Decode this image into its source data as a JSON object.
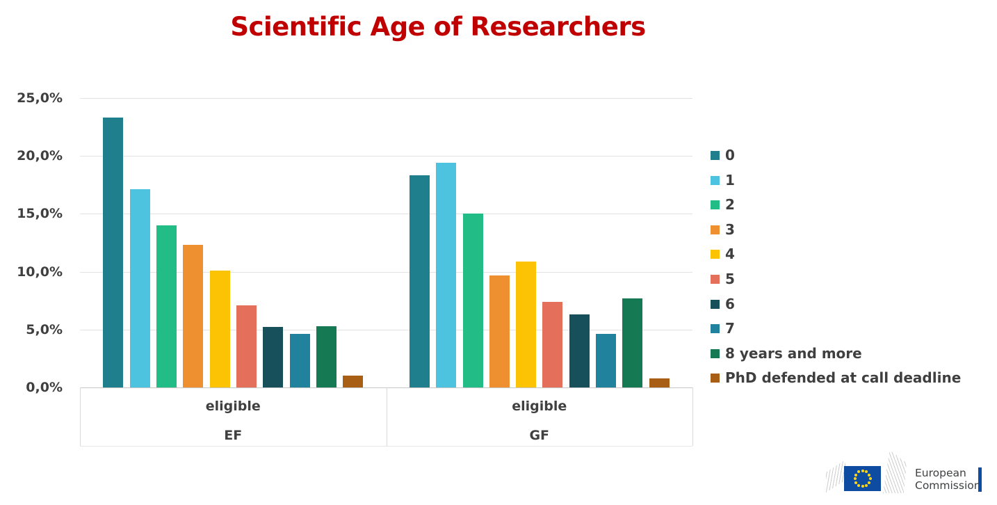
{
  "title": {
    "text": "Scientific Age of Researchers",
    "color": "#C00000"
  },
  "chart_data": {
    "type": "bar",
    "title": "Scientific Age of Researchers",
    "xlabel": "",
    "ylabel": "",
    "ylim": [
      0,
      25
    ],
    "grid": true,
    "legend_position": "right",
    "yticks": [
      {
        "value": 0,
        "label": "0,0%"
      },
      {
        "value": 5,
        "label": "5,0%"
      },
      {
        "value": 10,
        "label": "10,0%"
      },
      {
        "value": 15,
        "label": "15,0%"
      },
      {
        "value": 20,
        "label": "20,0%"
      },
      {
        "value": 25,
        "label": "25,0%"
      }
    ],
    "categories": [
      {
        "top": "eligible",
        "bottom": "EF"
      },
      {
        "top": "eligible",
        "bottom": "GF"
      }
    ],
    "series": [
      {
        "name": "0",
        "color": "#1F7F8C",
        "values": [
          23.3,
          18.3
        ]
      },
      {
        "name": "1",
        "color": "#4EC3E0",
        "values": [
          17.1,
          19.4
        ]
      },
      {
        "name": "2",
        "color": "#22BD86",
        "values": [
          14.0,
          15.0
        ]
      },
      {
        "name": "3",
        "color": "#EE8F30",
        "values": [
          12.3,
          9.7
        ]
      },
      {
        "name": "4",
        "color": "#FBC304",
        "values": [
          10.1,
          10.9
        ]
      },
      {
        "name": "5",
        "color": "#E4705C",
        "values": [
          7.1,
          7.4
        ]
      },
      {
        "name": "6",
        "color": "#17505B",
        "values": [
          5.2,
          6.3
        ]
      },
      {
        "name": "7",
        "color": "#20829C",
        "values": [
          4.6,
          4.6
        ]
      },
      {
        "name": "8 years and more",
        "color": "#157A54",
        "values": [
          5.3,
          7.7
        ]
      },
      {
        "name": "PhD defended at call deadline",
        "color": "#A85E14",
        "values": [
          1.0,
          0.8
        ]
      }
    ]
  },
  "logo": {
    "line1": "European",
    "line2": "Commission",
    "flag_color": "#0E4CA1",
    "star_color": "#FFD617",
    "bar_color": "#0E4CA1",
    "text_color": "#3E4042"
  }
}
